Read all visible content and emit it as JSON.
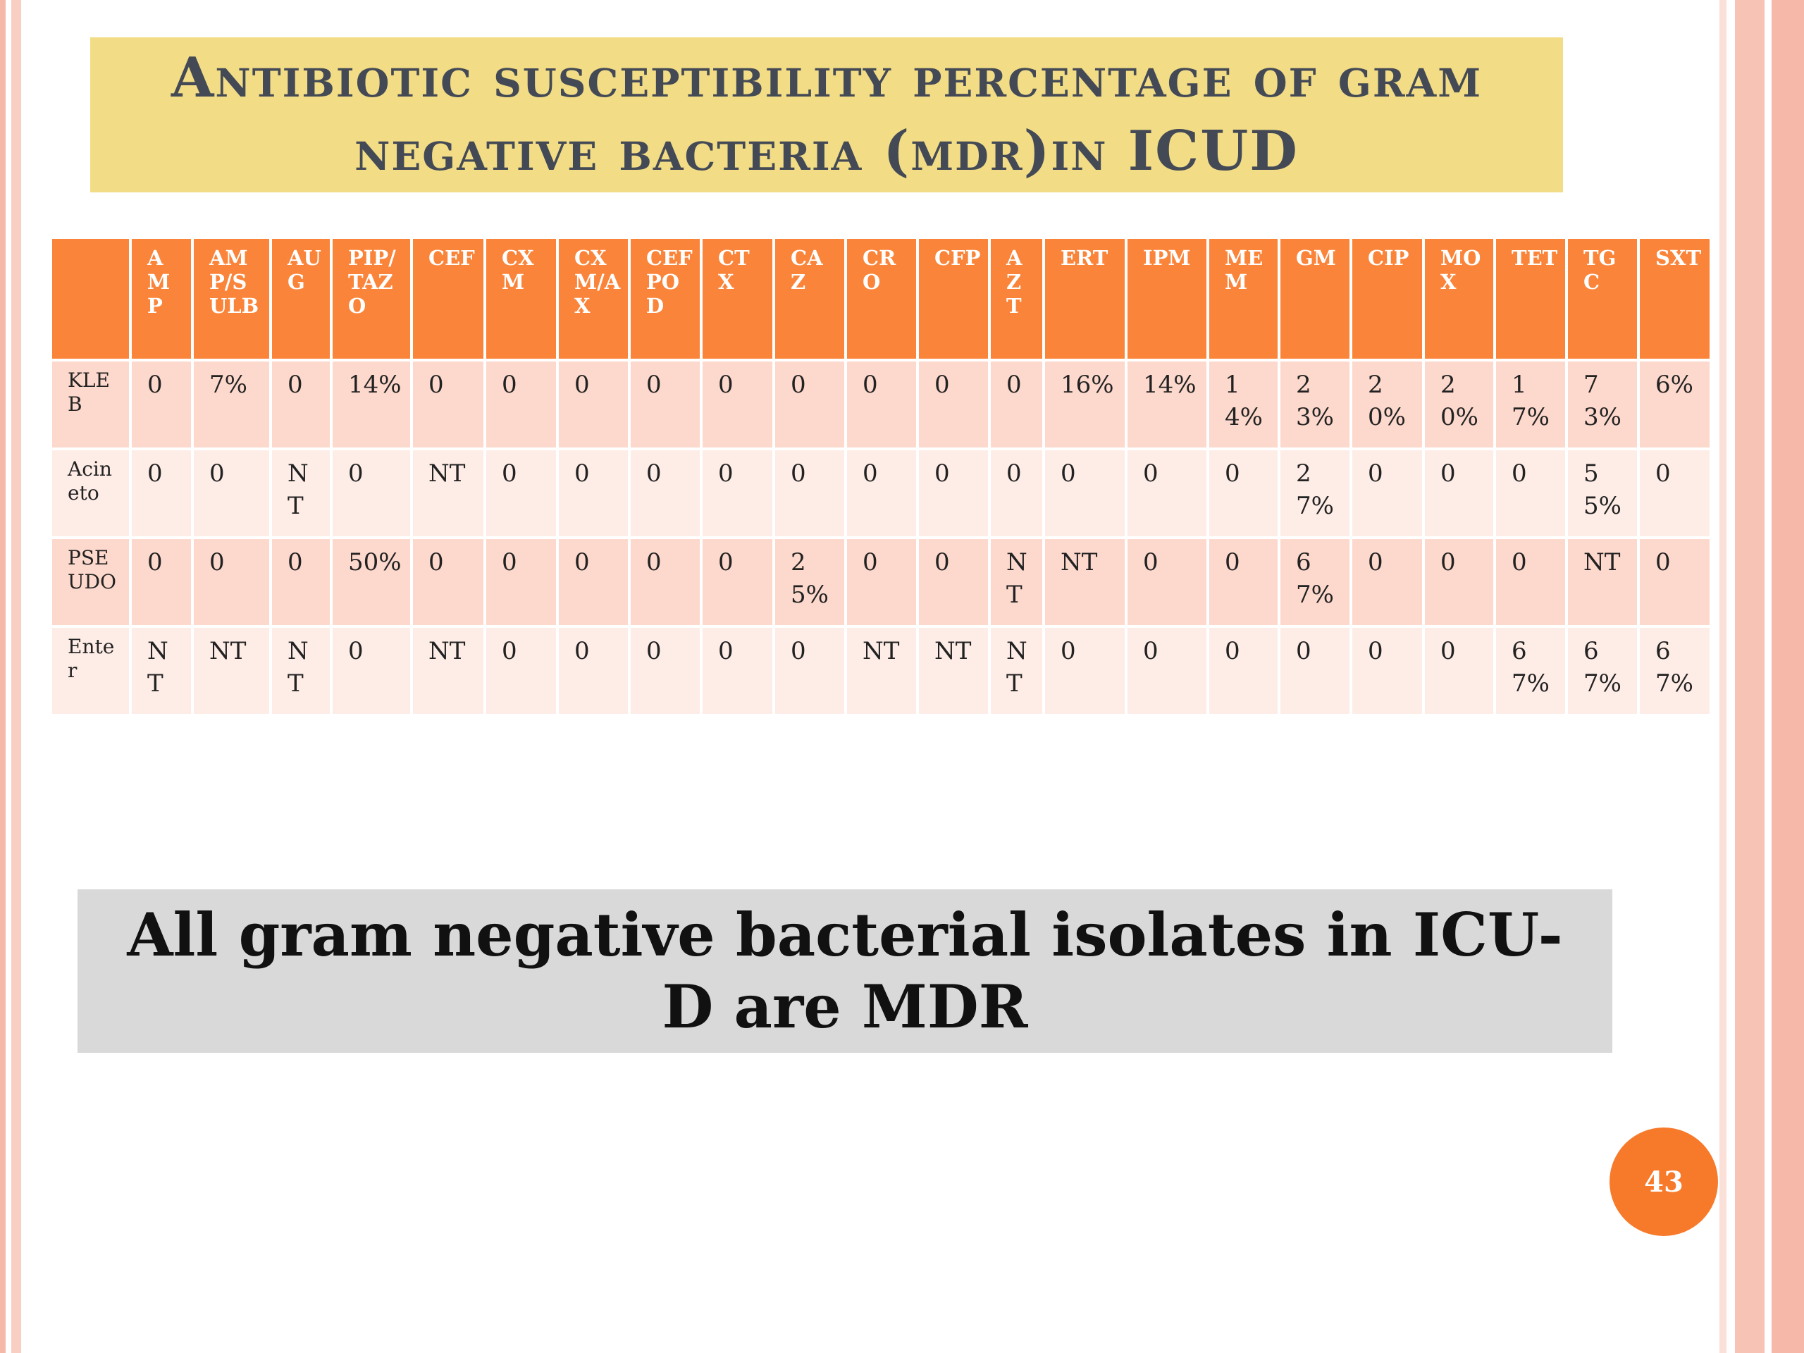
{
  "slide": {
    "title": "Antibiotic susceptibility percentage of gram negative bacteria (mdr)in ICUD",
    "note": "All gram negative bacterial isolates in ICU-D are MDR",
    "page_number": "43"
  },
  "colors": {
    "title_background": "#f2dc86",
    "header_background": "#fa8439",
    "row_dark": "#fdd8cc",
    "row_light": "#feece6",
    "note_background": "#d9d9d9",
    "page_badge": "#f77a2b"
  },
  "table": {
    "headers": [
      "",
      "AMP",
      "AMP/SULB",
      "AUG",
      "PIP/TAZO",
      "CEF",
      "CXM",
      "CXM/AX",
      "CEFPOD",
      "CTX",
      "CAZ",
      "CRO",
      "CFP",
      "AZT",
      "ERT",
      "IPM",
      "MEM",
      "GM",
      "CIP",
      "MOX",
      "TET",
      "TGC",
      "SXT"
    ],
    "rows": [
      [
        "KLEB",
        "0",
        "7%",
        "0",
        "14%",
        "0",
        "0",
        "0",
        "0",
        "0",
        "0",
        "0",
        "0",
        "0",
        "16%",
        "14%",
        "14%",
        "23%",
        "20%",
        "20%",
        "17%",
        "73%",
        "6%"
      ],
      [
        "Acineto",
        "0",
        "0",
        "NT",
        "0",
        "NT",
        "0",
        "0",
        "0",
        "0",
        "0",
        "0",
        "0",
        "0",
        "0",
        "0",
        "0",
        "27%",
        "0",
        "0",
        "0",
        "55%",
        "0"
      ],
      [
        "PSEUDO",
        "0",
        "0",
        "0",
        "50%",
        "0",
        "0",
        "0",
        "0",
        "0",
        "25%",
        "0",
        "0",
        "NT",
        "NT",
        "0",
        "0",
        "67%",
        "0",
        "0",
        "0",
        "NT",
        "0"
      ],
      [
        "Enter",
        "NT",
        "NT",
        "NT",
        "0",
        "NT",
        "0",
        "0",
        "0",
        "0",
        "0",
        "NT",
        "NT",
        "NT",
        "0",
        "0",
        "0",
        "0",
        "0",
        "0",
        "67%",
        "67%",
        "67%"
      ]
    ]
  }
}
